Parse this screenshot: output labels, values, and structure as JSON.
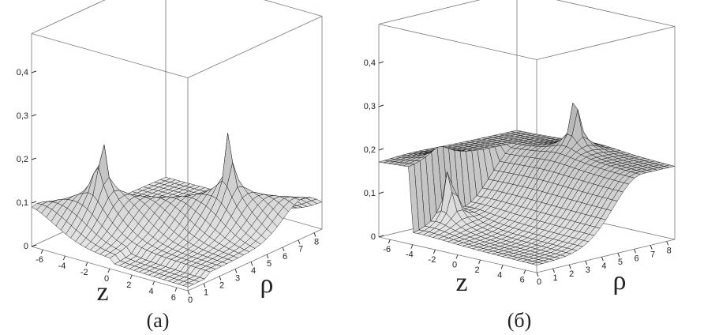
{
  "panels": [
    {
      "caption": "(a)",
      "z_label": "z",
      "rho_label": "ρ",
      "value_ticks": [
        "0",
        "0,1",
        "0,2",
        "0,3",
        "0,4"
      ],
      "z_ticks": [
        "-6",
        "-4",
        "-2",
        "0",
        "2",
        "4",
        "6"
      ],
      "rho_ticks": [
        "0",
        "1",
        "2",
        "3",
        "4",
        "5",
        "6",
        "7",
        "8"
      ]
    },
    {
      "caption": "(б)",
      "z_label": "z",
      "rho_label": "ρ",
      "value_ticks": [
        "0",
        "0,1",
        "0,2",
        "0,3",
        "0,4"
      ],
      "z_ticks": [
        "-6",
        "-4",
        "-2",
        "0",
        "2",
        "4",
        "6"
      ],
      "rho_ticks": [
        "0",
        "1",
        "2",
        "3",
        "4",
        "5",
        "6",
        "7",
        "8"
      ]
    }
  ]
}
